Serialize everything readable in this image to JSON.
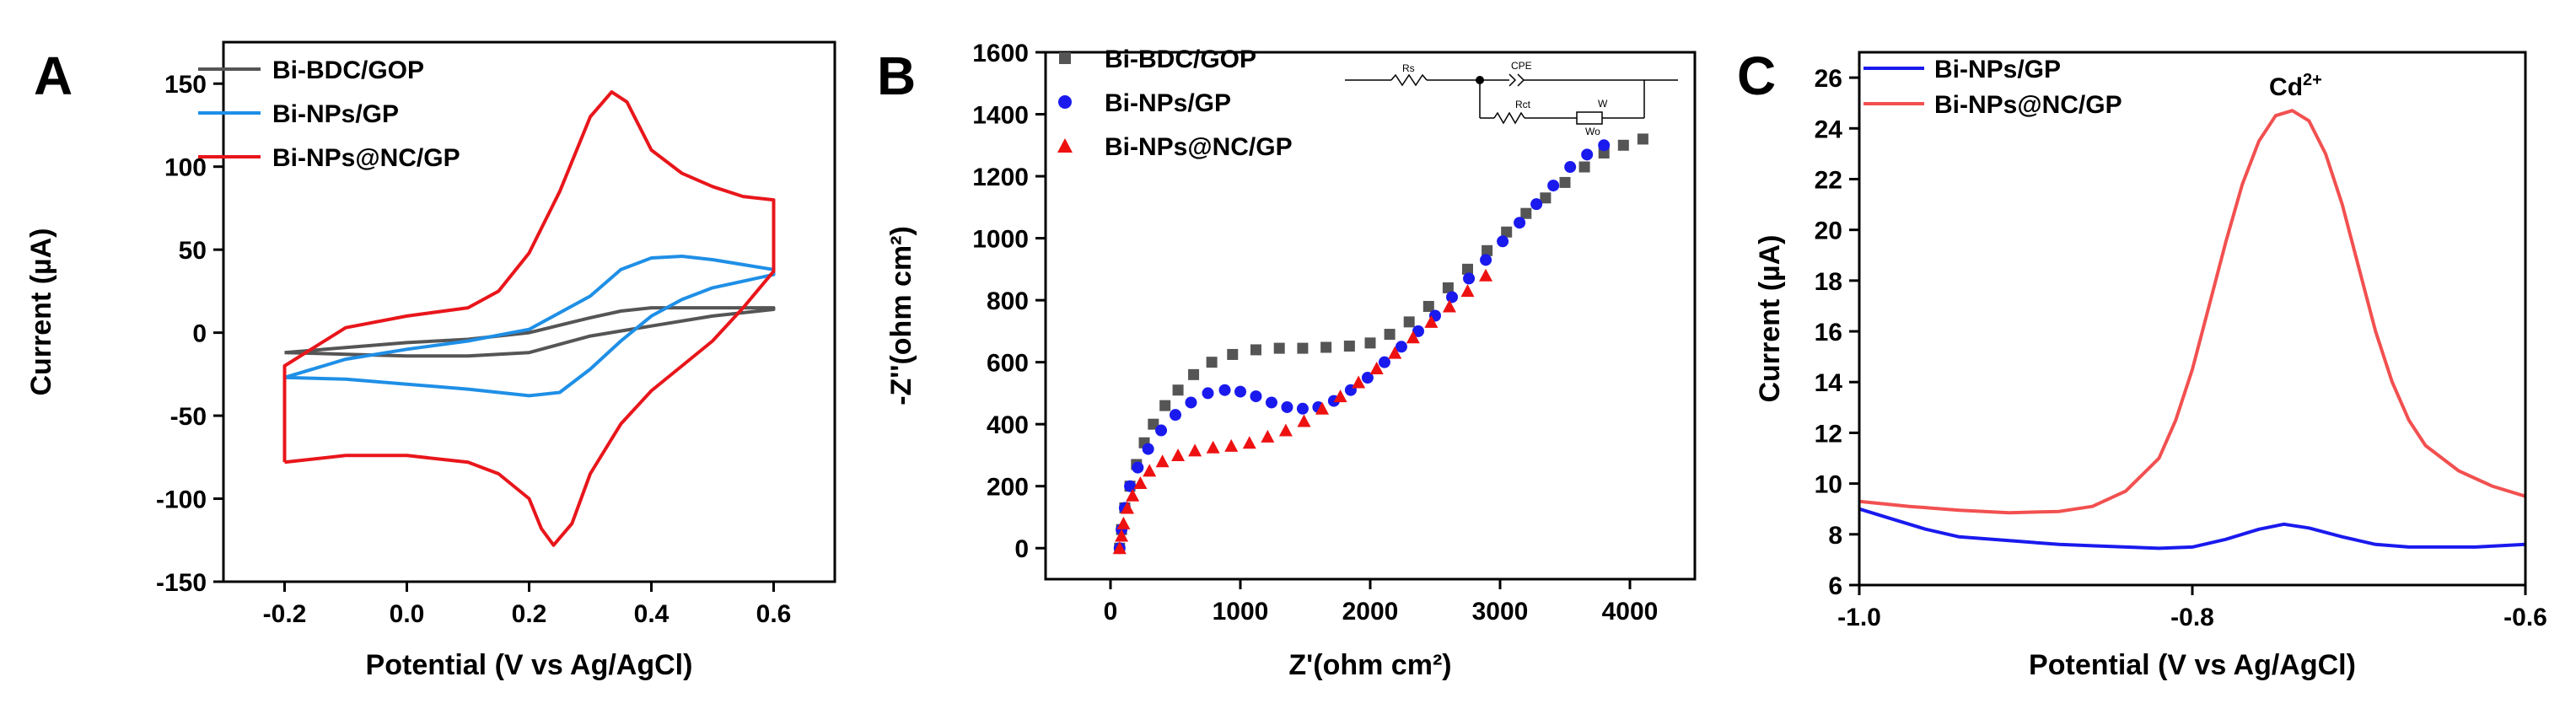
{
  "chart_data": [
    {
      "panel": "A",
      "type": "line",
      "xlabel": "Potential (V vs Ag/AgCl)",
      "ylabel": "Current (µA)",
      "xlim": [
        -0.3,
        0.7
      ],
      "ylim": [
        -150,
        175
      ],
      "xticks": [
        -0.2,
        0.0,
        0.2,
        0.4,
        0.6
      ],
      "xtick_labels": [
        "-0.2",
        "0.0",
        "0.2",
        "0.4",
        "0.6"
      ],
      "yticks": [
        -150,
        -100,
        -50,
        0,
        50,
        100,
        150
      ],
      "ytick_labels": [
        "-150",
        "-100",
        "-50",
        "0",
        "50",
        "100",
        "150"
      ],
      "legend_position": "top-left",
      "series": [
        {
          "name": "Bi-BDC/GOP",
          "color": "#555555",
          "x": [
            -0.2,
            -0.1,
            0.0,
            0.1,
            0.2,
            0.3,
            0.35,
            0.4,
            0.5,
            0.6,
            0.6,
            0.5,
            0.4,
            0.35,
            0.3,
            0.2,
            0.1,
            0.0,
            -0.1,
            -0.2
          ],
          "y": [
            -12,
            -9,
            -6,
            -4,
            0,
            9,
            13,
            15,
            15,
            15,
            14,
            10,
            4,
            1,
            -2,
            -12,
            -14,
            -14,
            -13,
            -12
          ]
        },
        {
          "name": "Bi-NPs/GP",
          "color": "#1f8fe6",
          "x": [
            -0.2,
            -0.1,
            0.0,
            0.1,
            0.2,
            0.3,
            0.35,
            0.4,
            0.45,
            0.5,
            0.6,
            0.6,
            0.5,
            0.45,
            0.4,
            0.35,
            0.3,
            0.25,
            0.2,
            0.1,
            0.0,
            -0.1,
            -0.2
          ],
          "y": [
            -27,
            -16,
            -10,
            -5,
            2,
            22,
            38,
            45,
            46,
            44,
            38,
            35,
            27,
            20,
            10,
            -5,
            -22,
            -36,
            -38,
            -34,
            -31,
            -28,
            -27
          ]
        },
        {
          "name": "Bi-NPs@NC/GP",
          "color": "#e8161b",
          "x": [
            -0.2,
            -0.2,
            -0.1,
            0.0,
            0.1,
            0.15,
            0.2,
            0.25,
            0.3,
            0.335,
            0.36,
            0.4,
            0.45,
            0.5,
            0.55,
            0.6,
            0.6,
            0.55,
            0.5,
            0.45,
            0.4,
            0.35,
            0.3,
            0.27,
            0.24,
            0.22,
            0.2,
            0.15,
            0.1,
            0.0,
            -0.1,
            -0.2
          ],
          "y": [
            -78,
            -20,
            3,
            10,
            15,
            25,
            48,
            85,
            130,
            145,
            139,
            110,
            96,
            88,
            82,
            80,
            37,
            15,
            -5,
            -20,
            -35,
            -55,
            -85,
            -115,
            -128,
            -118,
            -100,
            -85,
            -78,
            -74,
            -74,
            -78
          ]
        }
      ]
    },
    {
      "panel": "B",
      "type": "scatter",
      "xlabel": "Z'(ohm cm²)",
      "ylabel": "-Z''(ohm cm²)",
      "xlim": [
        -500,
        4500
      ],
      "ylim": [
        -100,
        1600
      ],
      "xticks": [
        0,
        1000,
        2000,
        3000,
        4000
      ],
      "xtick_labels": [
        "0",
        "1000",
        "2000",
        "3000",
        "4000"
      ],
      "yticks": [
        0,
        200,
        400,
        600,
        800,
        1000,
        1200,
        1400,
        1600
      ],
      "ytick_labels": [
        "0",
        "200",
        "400",
        "600",
        "800",
        "1000",
        "1200",
        "1400",
        "1600"
      ],
      "legend_position": "top-left",
      "circuit_labels": [
        "Rs",
        "CPE",
        "Rct",
        "W",
        "Wo"
      ],
      "series": [
        {
          "name": "Bi-BDC/GOP",
          "color": "#555555",
          "marker": "square",
          "x": [
            70,
            85,
            110,
            150,
            200,
            260,
            330,
            420,
            520,
            640,
            780,
            940,
            1120,
            1300,
            1480,
            1660,
            1840,
            2000,
            2150,
            2300,
            2450,
            2600,
            2750,
            2900,
            3050,
            3200,
            3350,
            3500,
            3650,
            3800,
            3950,
            4100
          ],
          "y": [
            0,
            60,
            130,
            200,
            270,
            340,
            400,
            460,
            510,
            560,
            600,
            625,
            640,
            645,
            645,
            648,
            652,
            662,
            690,
            730,
            780,
            840,
            900,
            960,
            1020,
            1080,
            1130,
            1180,
            1230,
            1275,
            1300,
            1320
          ]
        },
        {
          "name": "Bi-NPs/GP",
          "color": "#1a1aee",
          "marker": "circle",
          "x": [
            70,
            85,
            110,
            150,
            210,
            290,
            390,
            500,
            620,
            750,
            880,
            1000,
            1120,
            1240,
            1360,
            1480,
            1600,
            1720,
            1850,
            1980,
            2110,
            2240,
            2370,
            2500,
            2630,
            2760,
            2890,
            3020,
            3150,
            3280,
            3410,
            3540,
            3670,
            3800
          ],
          "y": [
            0,
            60,
            130,
            200,
            260,
            320,
            380,
            430,
            470,
            500,
            510,
            505,
            490,
            470,
            455,
            450,
            455,
            475,
            510,
            550,
            600,
            650,
            700,
            750,
            810,
            870,
            930,
            990,
            1050,
            1110,
            1170,
            1230,
            1270,
            1300
          ]
        },
        {
          "name": "Bi-NPs@NC/GP",
          "color": "#ee1111",
          "marker": "triangle",
          "x": [
            70,
            85,
            100,
            130,
            170,
            230,
            300,
            400,
            520,
            650,
            790,
            930,
            1070,
            1210,
            1350,
            1490,
            1630,
            1770,
            1910,
            2050,
            2190,
            2330,
            2470,
            2610,
            2750,
            2890
          ],
          "y": [
            0,
            40,
            80,
            130,
            170,
            210,
            250,
            280,
            300,
            315,
            325,
            330,
            340,
            360,
            380,
            410,
            450,
            490,
            535,
            580,
            630,
            680,
            730,
            780,
            830,
            880
          ]
        }
      ]
    },
    {
      "panel": "C",
      "type": "line",
      "xlabel": "Potential (V vs Ag/AgCl)",
      "ylabel": "Current (µA)",
      "xlim": [
        -1.0,
        -0.6
      ],
      "ylim": [
        6,
        27
      ],
      "xticks": [
        -1.0,
        -0.8,
        -0.6
      ],
      "xtick_labels": [
        "-1.0",
        "-0.8",
        "-0.6"
      ],
      "yticks": [
        6,
        8,
        10,
        12,
        14,
        16,
        18,
        20,
        22,
        24,
        26
      ],
      "ytick_labels": [
        "6",
        "8",
        "10",
        "12",
        "14",
        "16",
        "18",
        "20",
        "22",
        "24",
        "26"
      ],
      "legend_position": "top-left",
      "annotation": {
        "text": "Cd",
        "superscript": "2+",
        "x": -0.738,
        "y": 25.3
      },
      "series": [
        {
          "name": "Bi-NPs/GP",
          "color": "#1a1aee",
          "x": [
            -1.0,
            -0.98,
            -0.96,
            -0.94,
            -0.92,
            -0.9,
            -0.88,
            -0.86,
            -0.84,
            -0.82,
            -0.8,
            -0.78,
            -0.76,
            -0.745,
            -0.73,
            -0.71,
            -0.69,
            -0.67,
            -0.65,
            -0.63,
            -0.6
          ],
          "y": [
            9.0,
            8.6,
            8.2,
            7.9,
            7.8,
            7.7,
            7.6,
            7.55,
            7.5,
            7.45,
            7.5,
            7.8,
            8.2,
            8.4,
            8.25,
            7.9,
            7.6,
            7.5,
            7.5,
            7.5,
            7.6
          ]
        },
        {
          "name": "Bi-NPs@NC/GP",
          "color": "#f25050",
          "x": [
            -1.0,
            -0.97,
            -0.94,
            -0.91,
            -0.88,
            -0.86,
            -0.84,
            -0.82,
            -0.81,
            -0.8,
            -0.79,
            -0.78,
            -0.77,
            -0.76,
            -0.75,
            -0.74,
            -0.73,
            -0.72,
            -0.71,
            -0.7,
            -0.69,
            -0.68,
            -0.67,
            -0.66,
            -0.64,
            -0.62,
            -0.6
          ],
          "y": [
            9.3,
            9.1,
            8.95,
            8.85,
            8.9,
            9.1,
            9.7,
            11.0,
            12.5,
            14.5,
            17.0,
            19.5,
            21.8,
            23.5,
            24.5,
            24.7,
            24.3,
            23.0,
            21.0,
            18.5,
            16.0,
            14.0,
            12.5,
            11.5,
            10.5,
            9.9,
            9.5
          ]
        }
      ]
    }
  ]
}
